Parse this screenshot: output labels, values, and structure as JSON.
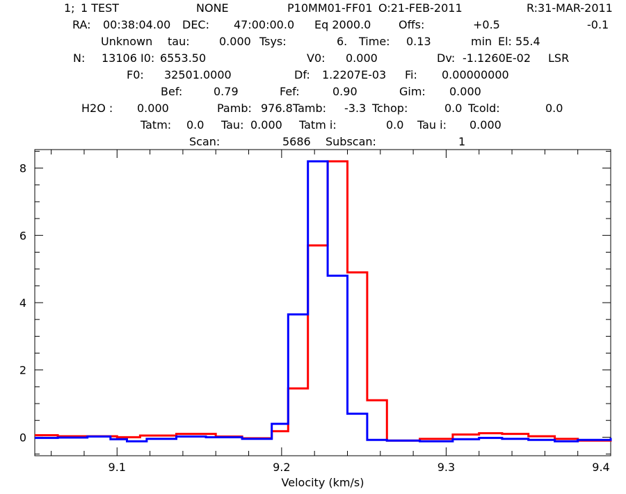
{
  "header": {
    "lines": [
      [
        "1;",
        "1 TEST",
        "NONE",
        "P10MM01-FF01",
        "O:21-FEB-2011",
        "R:31-MAR-2011"
      ],
      [
        "RA:",
        "00:38:04.00",
        "DEC:",
        "47:00:00.0",
        "Eq 2000.0",
        "Offs:",
        "+0.5",
        "-0.1"
      ],
      [
        "Unknown",
        "tau:",
        "0.000",
        "Tsys:",
        "6.",
        "Time:",
        "0.13",
        "min",
        "El: 55.4"
      ],
      [
        "N:",
        "13106",
        "I0:",
        "6553.50",
        "V0:",
        "0.000",
        "Dv:",
        "-1.1260E-02",
        "LSR"
      ],
      [
        "F0:",
        "32501.0000",
        "Df:",
        "1.2207E-03",
        "Fi:",
        "0.00000000"
      ],
      [
        "Bef:",
        "0.79",
        "Fef:",
        "0.90",
        "Gim:",
        "0.000"
      ],
      [
        "H2O :",
        "0.000",
        "Pamb:",
        "976.8",
        "Tamb:",
        "-3.3",
        "Tchop:",
        "0.0",
        "Tcold:",
        "0.0"
      ],
      [
        "Tatm:",
        "0.0",
        "Tau:",
        "0.000",
        "Tatm i:",
        "0.0",
        "Tau i:",
        "0.000"
      ],
      [
        "Scan:",
        "5686",
        "Subscan:",
        "1"
      ]
    ]
  },
  "chart_data": {
    "type": "line",
    "step": true,
    "xlabel": "Velocity (km/s)",
    "ylabel": "",
    "xlim": [
      9.05,
      9.4
    ],
    "ylim": [
      -0.55,
      8.55
    ],
    "xticks": [
      9.1,
      9.2,
      9.3,
      9.4
    ],
    "xtick_labels": [
      "9.1",
      "9.2",
      "9.3",
      "9.4"
    ],
    "yticks": [
      0,
      2,
      4,
      6,
      8
    ],
    "ytick_labels": [
      "0",
      "2",
      "4",
      "6",
      "8"
    ],
    "grid": false,
    "series": [
      {
        "color": "#ff0000",
        "x": [
          9.05,
          9.064,
          9.1,
          9.114,
          9.136,
          9.16,
          9.176,
          9.194,
          9.204,
          9.216,
          9.228,
          9.24,
          9.252,
          9.264,
          9.284,
          9.304,
          9.32,
          9.334,
          9.35,
          9.366,
          9.38,
          9.4
        ],
        "values": [
          0.06,
          0.03,
          0.0,
          0.05,
          0.1,
          0.02,
          -0.03,
          0.18,
          1.45,
          5.7,
          8.2,
          4.9,
          1.1,
          -0.1,
          -0.05,
          0.08,
          0.12,
          0.1,
          0.03,
          -0.05,
          -0.1,
          -0.05
        ]
      },
      {
        "color": "#0000ff",
        "x": [
          9.05,
          9.064,
          9.082,
          9.096,
          9.106,
          9.118,
          9.136,
          9.154,
          9.176,
          9.194,
          9.204,
          9.216,
          9.228,
          9.24,
          9.252,
          9.264,
          9.284,
          9.304,
          9.32,
          9.334,
          9.35,
          9.366,
          9.38,
          9.4
        ],
        "values": [
          -0.02,
          -0.01,
          0.02,
          -0.06,
          -0.12,
          -0.05,
          0.02,
          0.0,
          -0.05,
          0.4,
          3.65,
          8.2,
          4.8,
          0.7,
          -0.08,
          -0.1,
          -0.12,
          -0.06,
          -0.02,
          -0.05,
          -0.08,
          -0.12,
          -0.08,
          -0.02
        ]
      }
    ]
  }
}
